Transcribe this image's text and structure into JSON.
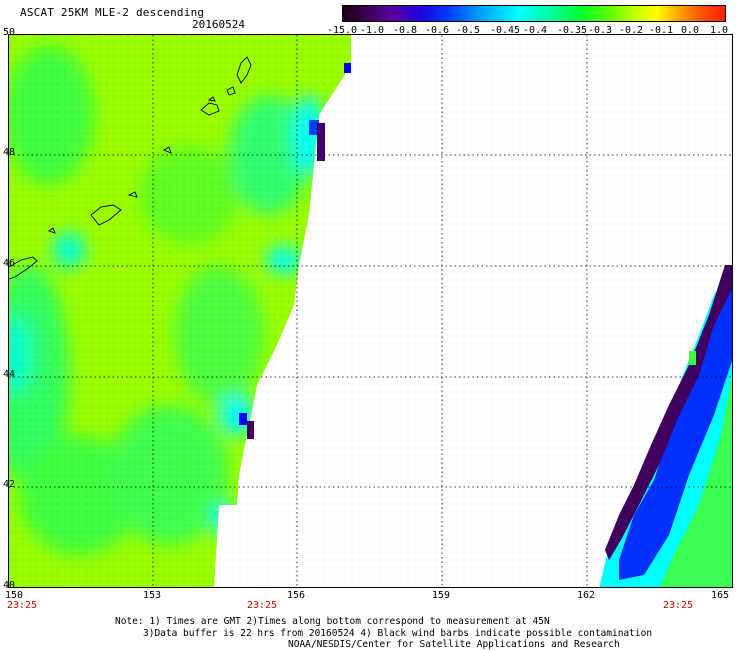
{
  "header": {
    "title": "ASCAT 25KM MLE-2 descending",
    "date": "20160524"
  },
  "colorbar": {
    "labels": [
      "-15.0",
      "-1.0",
      "-0.8",
      "-0.6",
      "-0.5",
      "-0.45",
      "-0.4",
      "-0.35",
      "-0.3",
      "-0.2",
      "-0.1",
      "0.0",
      "1.0"
    ]
  },
  "axes": {
    "lat_ticks": [
      "50",
      "48",
      "46",
      "44",
      "42",
      "40"
    ],
    "lon_ticks": [
      "150",
      "153",
      "156",
      "159",
      "162",
      "165"
    ],
    "time_labels": [
      "23:25",
      "23:25",
      "23:25"
    ]
  },
  "notes": {
    "line1": "Note: 1) Times are GMT 2)Times along bottom correspond to measurement at 45N",
    "line2": "3)Data buffer is 22 hrs from 20160524 4) Black wind barbs indicate possible contamination",
    "line3": "NOAA/NESDIS/Center for Satellite Applications and Research"
  },
  "colors": {
    "background_field": "#9cff00",
    "swath_green": "#40ff40",
    "cyan": "#00ffff",
    "blue": "#0030ff",
    "dark_purple": "#400060",
    "time_label": "#c00000"
  }
}
